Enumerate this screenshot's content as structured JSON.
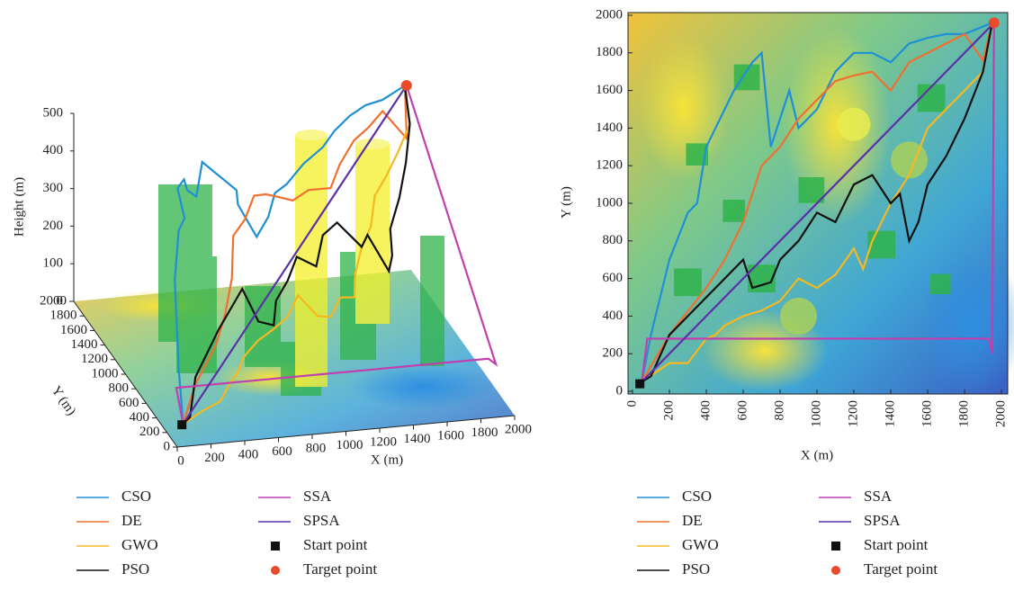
{
  "chart_data": [
    {
      "type": "line3d",
      "xlabel": "X (m)",
      "ylabel": "Y (m)",
      "zlabel": "Height (m)",
      "xlim": [
        0,
        2000
      ],
      "ylim": [
        0,
        2000
      ],
      "zlim": [
        0,
        500
      ],
      "xticks": [
        0,
        200,
        400,
        600,
        800,
        1000,
        1200,
        1400,
        1600,
        1800,
        2000
      ],
      "yticks": [
        0,
        200,
        400,
        600,
        800,
        1000,
        1200,
        1400,
        1600,
        1800,
        2000
      ],
      "zticks": [
        0,
        100,
        200,
        300,
        400,
        500
      ],
      "series": [
        {
          "name": "CSO",
          "color": "#1f8fd6",
          "x": [
            50,
            100,
            200,
            300,
            350,
            400,
            500,
            550,
            650,
            700,
            750,
            850,
            900,
            1000,
            1100,
            1200,
            1300,
            1400,
            1500,
            1600,
            1700,
            1800,
            1950
          ],
          "y": [
            50,
            300,
            700,
            950,
            1000,
            1300,
            1500,
            1600,
            1750,
            1800,
            1300,
            1600,
            1400,
            1500,
            1700,
            1800,
            1800,
            1750,
            1850,
            1880,
            1900,
            1900,
            1960
          ],
          "z": [
            50,
            150,
            300,
            380,
            400,
            420,
            400,
            350,
            300,
            380,
            400,
            300,
            250,
            280,
            300,
            300,
            350,
            400,
            420,
            450,
            470,
            480,
            500
          ]
        },
        {
          "name": "DE",
          "color": "#f07030",
          "x": [
            50,
            200,
            400,
            500,
            600,
            650,
            700,
            800,
            900,
            1000,
            1100,
            1200,
            1300,
            1400,
            1500,
            1600,
            1700,
            1800,
            1900,
            1950
          ],
          "y": [
            50,
            300,
            550,
            700,
            900,
            1050,
            1200,
            1300,
            1450,
            1550,
            1650,
            1680,
            1700,
            1600,
            1750,
            1800,
            1850,
            1900,
            1760,
            1960
          ],
          "z": [
            50,
            100,
            150,
            200,
            250,
            280,
            300,
            320,
            350,
            330,
            300,
            280,
            300,
            320,
            350,
            400,
            420,
            450,
            400,
            500
          ]
        },
        {
          "name": "GWO",
          "color": "#f5b820",
          "x": [
            50,
            200,
            300,
            400,
            450,
            500,
            600,
            700,
            800,
            900,
            1000,
            1100,
            1200,
            1250,
            1300,
            1400,
            1500,
            1600,
            1700,
            1800,
            1900,
            1950
          ],
          "y": [
            50,
            150,
            150,
            280,
            300,
            350,
            400,
            430,
            480,
            600,
            550,
            620,
            760,
            650,
            800,
            1000,
            1150,
            1400,
            1500,
            1600,
            1700,
            1960
          ],
          "z": [
            50,
            60,
            80,
            100,
            120,
            150,
            180,
            200,
            220,
            250,
            200,
            180,
            200,
            220,
            250,
            280,
            300,
            330,
            360,
            400,
            450,
            500
          ]
        },
        {
          "name": "PSO",
          "color": "#111111",
          "x": [
            50,
            100,
            200,
            300,
            400,
            500,
            600,
            650,
            750,
            800,
            900,
            1000,
            1100,
            1200,
            1300,
            1400,
            1450,
            1500,
            1550,
            1600,
            1700,
            1800,
            1900,
            1950
          ],
          "y": [
            50,
            80,
            300,
            400,
            500,
            600,
            700,
            550,
            580,
            700,
            800,
            950,
            900,
            1100,
            1150,
            1000,
            1050,
            800,
            900,
            1100,
            1250,
            1450,
            1700,
            1960
          ],
          "z": [
            50,
            60,
            120,
            160,
            200,
            230,
            260,
            200,
            180,
            220,
            250,
            280,
            260,
            300,
            320,
            280,
            300,
            250,
            270,
            300,
            350,
            400,
            450,
            500
          ]
        },
        {
          "name": "SSA",
          "color": "#c040b0",
          "x": [
            50,
            80,
            1930,
            1950,
            1960
          ],
          "y": [
            50,
            280,
            280,
            200,
            1960
          ],
          "z": [
            50,
            100,
            100,
            100,
            500
          ]
        },
        {
          "name": "SPSA",
          "color": "#5b30a8",
          "x": [
            50,
            1960
          ],
          "y": [
            50,
            1960
          ],
          "z": [
            50,
            500
          ]
        },
        {
          "name": "Start point",
          "color": "#111111",
          "marker": "square",
          "x": [
            40
          ],
          "y": [
            40
          ],
          "z": [
            50
          ]
        },
        {
          "name": "Target point",
          "color": "#e84a2a",
          "marker": "circle",
          "x": [
            1960
          ],
          "y": [
            1960
          ],
          "z": [
            500
          ]
        }
      ]
    },
    {
      "type": "line",
      "xlabel": "X (m)",
      "ylabel": "Y (m)",
      "xlim": [
        0,
        2000
      ],
      "ylim": [
        0,
        2000
      ],
      "xticks": [
        0,
        200,
        400,
        600,
        800,
        1000,
        1200,
        1400,
        1600,
        1800,
        2000
      ],
      "yticks": [
        0,
        200,
        400,
        600,
        800,
        1000,
        1200,
        1400,
        1600,
        1800,
        2000
      ],
      "obstacles": [
        {
          "shape": "square",
          "color": "#2fb34a",
          "x": 300,
          "y": 580,
          "size": 150
        },
        {
          "shape": "square",
          "color": "#2fb34a",
          "x": 350,
          "y": 1260,
          "size": 120
        },
        {
          "shape": "square",
          "color": "#2fb34a",
          "x": 550,
          "y": 960,
          "size": 120
        },
        {
          "shape": "square",
          "color": "#2fb34a",
          "x": 620,
          "y": 1670,
          "size": 140
        },
        {
          "shape": "square",
          "color": "#2fb34a",
          "x": 700,
          "y": 600,
          "size": 150
        },
        {
          "shape": "square",
          "color": "#2fb34a",
          "x": 970,
          "y": 1070,
          "size": 140
        },
        {
          "shape": "square",
          "color": "#2fb34a",
          "x": 1350,
          "y": 780,
          "size": 150
        },
        {
          "shape": "square",
          "color": "#2fb34a",
          "x": 1620,
          "y": 1560,
          "size": 150
        },
        {
          "shape": "square",
          "color": "#2fb34a",
          "x": 1670,
          "y": 570,
          "size": 110
        },
        {
          "shape": "circle",
          "color": "#a8d05a",
          "x": 900,
          "y": 400,
          "r": 100
        },
        {
          "shape": "circle",
          "color": "#e8ec50",
          "x": 1200,
          "y": 1420,
          "r": 90
        },
        {
          "shape": "circle",
          "color": "#a8d05a",
          "x": 1500,
          "y": 1230,
          "r": 100
        }
      ],
      "series": [
        {
          "name": "CSO",
          "color": "#1f8fd6",
          "x": [
            50,
            100,
            200,
            300,
            350,
            400,
            500,
            550,
            650,
            700,
            750,
            850,
            900,
            1000,
            1100,
            1200,
            1300,
            1400,
            1500,
            1600,
            1700,
            1800,
            1950
          ],
          "y": [
            50,
            300,
            700,
            950,
            1000,
            1300,
            1500,
            1600,
            1750,
            1800,
            1300,
            1600,
            1400,
            1500,
            1700,
            1800,
            1800,
            1750,
            1850,
            1880,
            1900,
            1900,
            1960
          ]
        },
        {
          "name": "DE",
          "color": "#f07030",
          "x": [
            50,
            200,
            400,
            500,
            600,
            650,
            700,
            800,
            900,
            1000,
            1100,
            1200,
            1300,
            1400,
            1500,
            1600,
            1700,
            1800,
            1900,
            1950
          ],
          "y": [
            50,
            300,
            550,
            700,
            900,
            1050,
            1200,
            1300,
            1450,
            1550,
            1650,
            1680,
            1700,
            1600,
            1750,
            1800,
            1850,
            1900,
            1760,
            1960
          ]
        },
        {
          "name": "GWO",
          "color": "#f5b820",
          "x": [
            50,
            200,
            300,
            400,
            450,
            500,
            600,
            700,
            800,
            900,
            1000,
            1100,
            1200,
            1250,
            1300,
            1400,
            1500,
            1600,
            1700,
            1800,
            1900,
            1950
          ],
          "y": [
            50,
            150,
            150,
            280,
            300,
            350,
            400,
            430,
            480,
            600,
            550,
            620,
            760,
            650,
            800,
            1000,
            1150,
            1400,
            1500,
            1600,
            1700,
            1960
          ]
        },
        {
          "name": "PSO",
          "color": "#111111",
          "x": [
            50,
            100,
            200,
            300,
            400,
            500,
            600,
            650,
            750,
            800,
            900,
            1000,
            1100,
            1200,
            1300,
            1400,
            1450,
            1500,
            1550,
            1600,
            1700,
            1800,
            1900,
            1950
          ],
          "y": [
            50,
            80,
            300,
            400,
            500,
            600,
            700,
            550,
            580,
            700,
            800,
            950,
            900,
            1100,
            1150,
            1000,
            1050,
            800,
            900,
            1100,
            1250,
            1450,
            1700,
            1960
          ]
        },
        {
          "name": "SSA",
          "color": "#c040b0",
          "x": [
            50,
            80,
            1930,
            1950,
            1960
          ],
          "y": [
            50,
            280,
            280,
            200,
            1960
          ]
        },
        {
          "name": "SPSA",
          "color": "#5b30a8",
          "x": [
            50,
            1960
          ],
          "y": [
            50,
            1960
          ]
        },
        {
          "name": "Start point",
          "color": "#111111",
          "marker": "square",
          "x": [
            40
          ],
          "y": [
            40
          ]
        },
        {
          "name": "Target point",
          "color": "#e84a2a",
          "marker": "circle",
          "x": [
            1960
          ],
          "y": [
            1960
          ]
        }
      ]
    }
  ]
}
